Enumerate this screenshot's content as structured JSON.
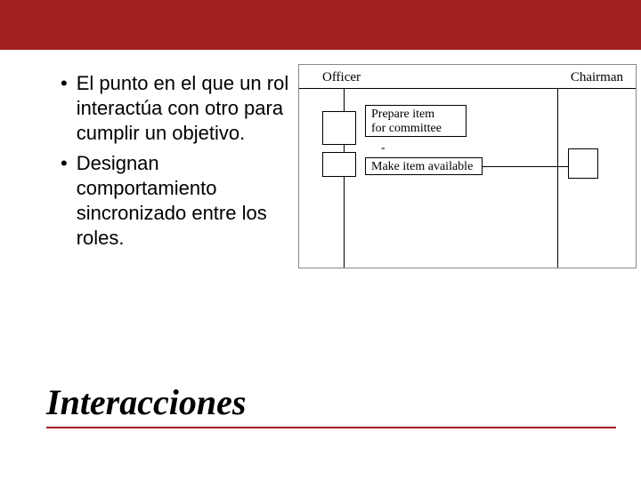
{
  "colors": {
    "header_bg": "#a02020",
    "underline": "#a02020",
    "text": "#000000",
    "bg": "#ffffff",
    "border": "#000000"
  },
  "bullets": [
    "El punto en el que un rol interactúa con otro para cumplir un objetivo.",
    "Designan comportamiento sincronizado entre los roles."
  ],
  "diagram": {
    "roles": {
      "left": "Officer",
      "right": "Chairman"
    },
    "activities": {
      "prepare": "Prepare item\nfor committee",
      "make_available": "Make item available"
    }
  },
  "title": "Interacciones"
}
